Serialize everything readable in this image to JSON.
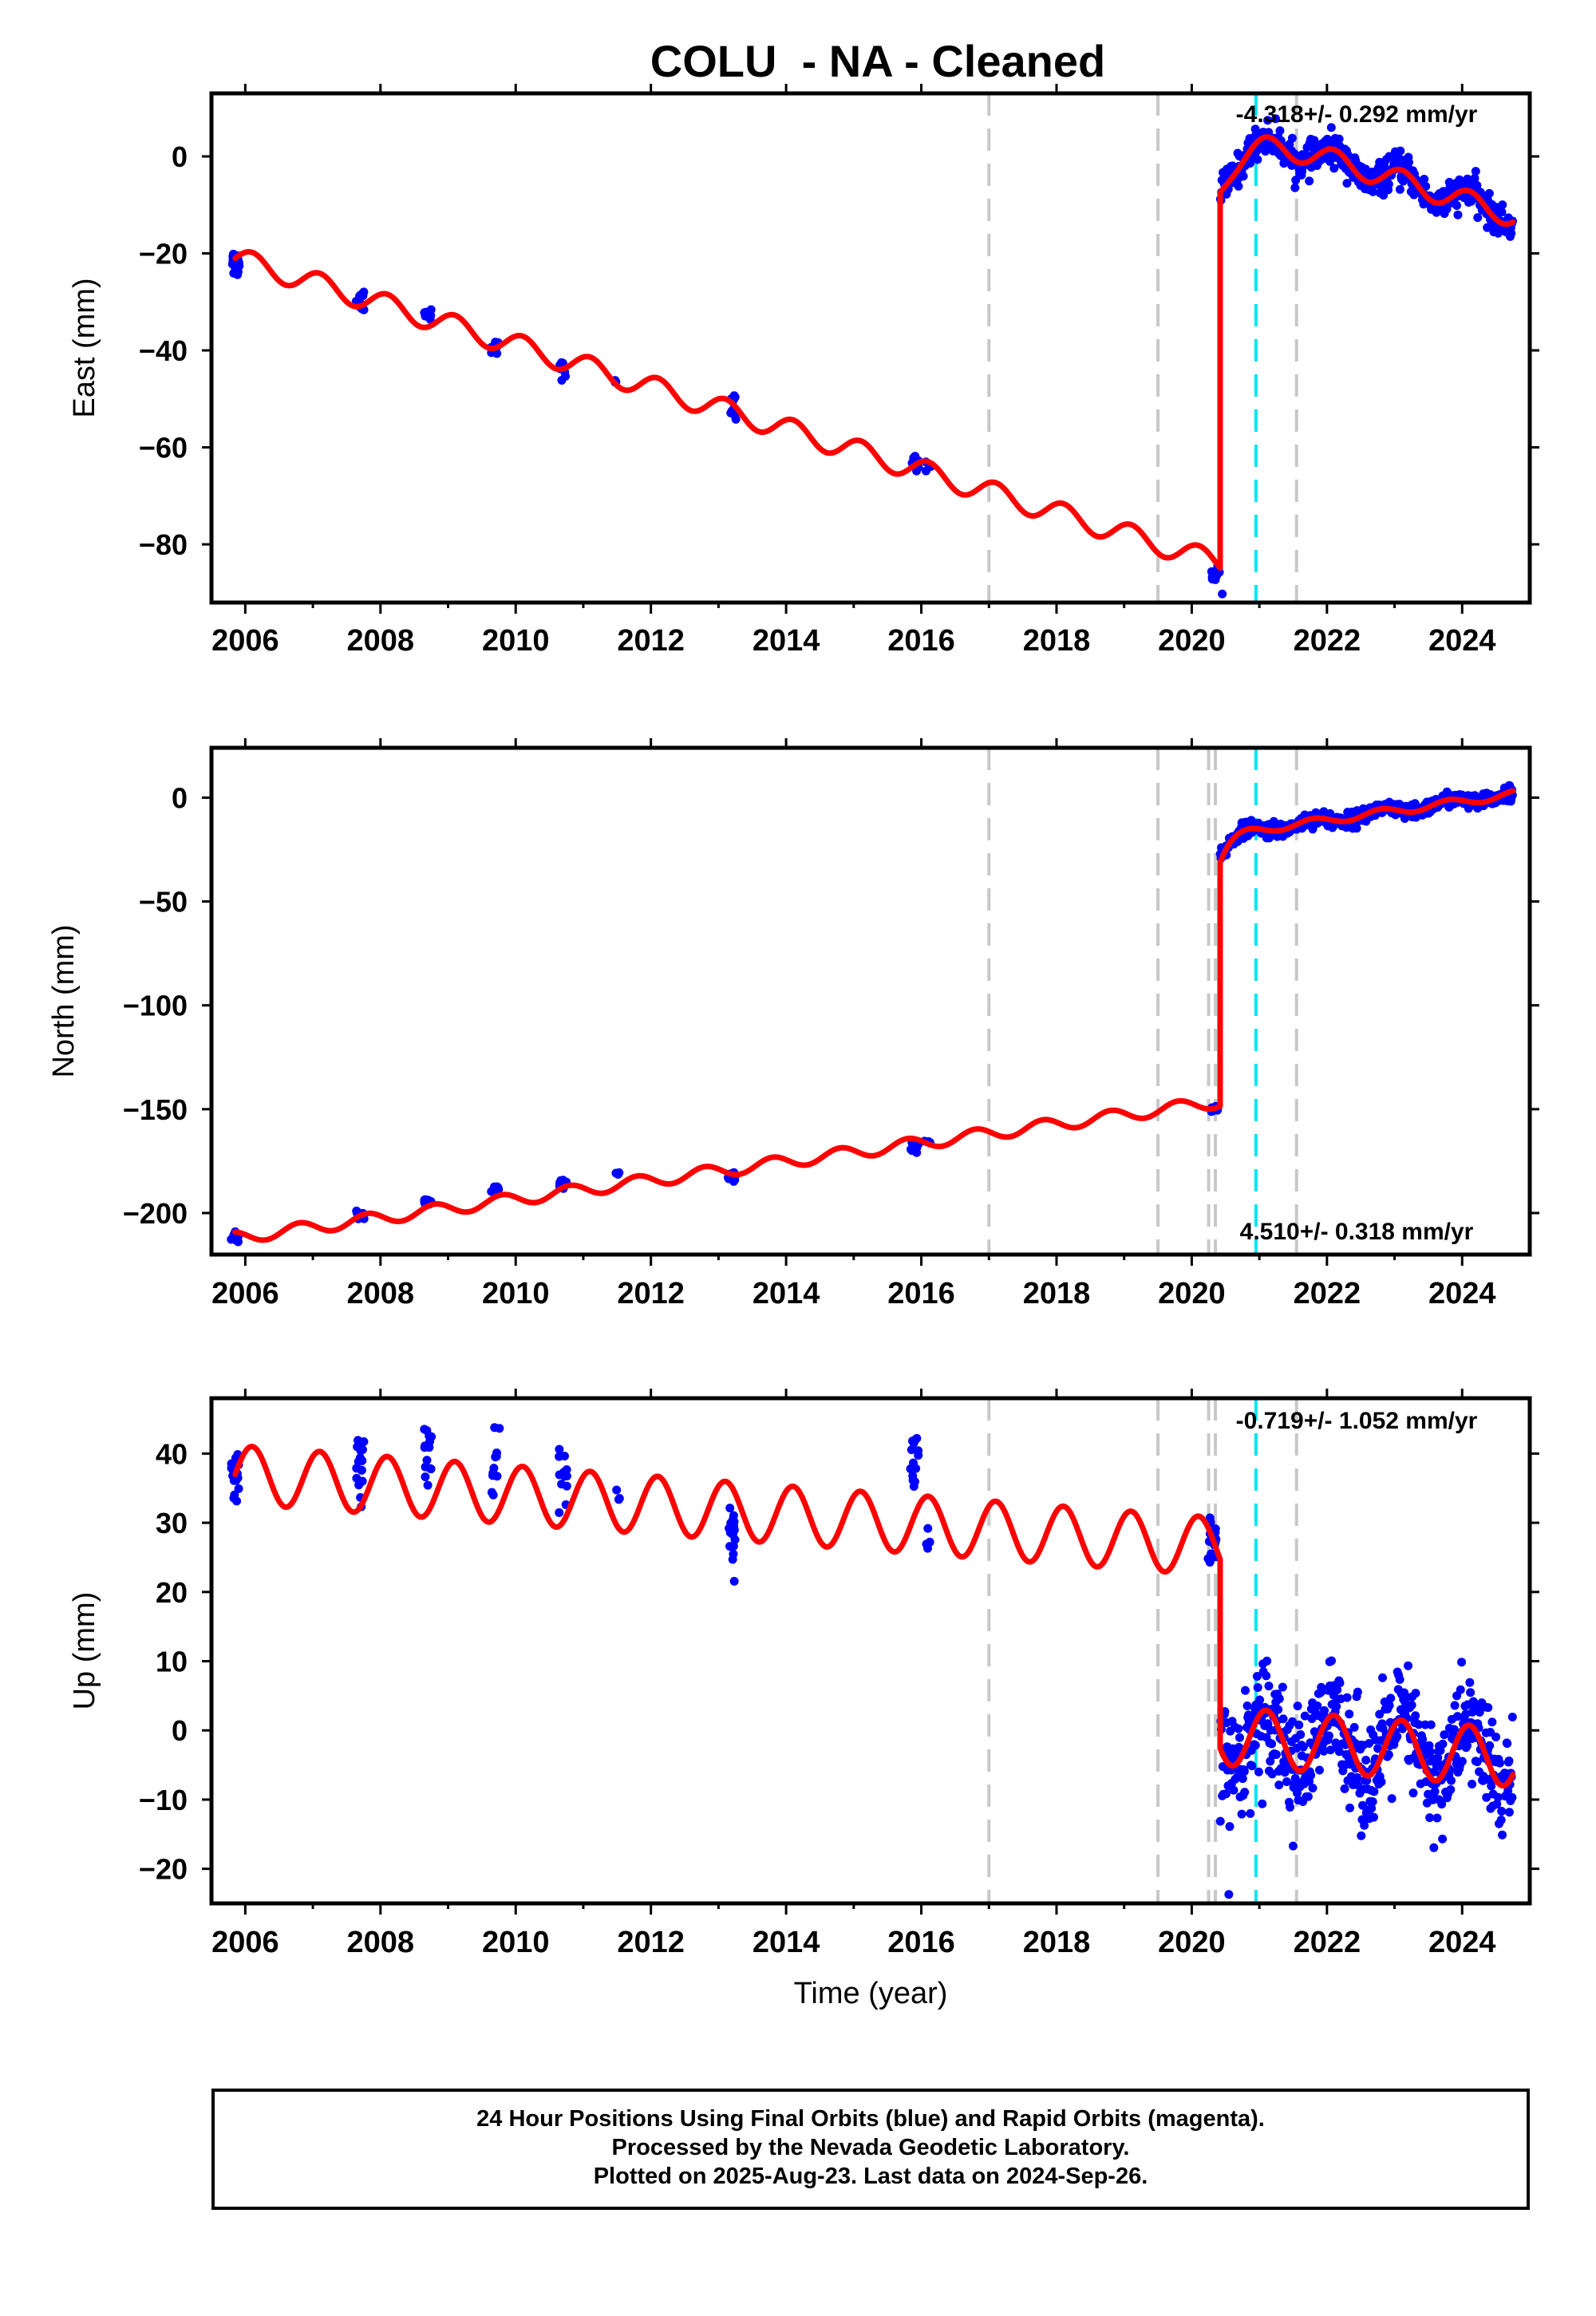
{
  "title": "COLU  - NA - Cleaned",
  "x_axis_label": "Time (year)",
  "footer": {
    "line1": "24 Hour Positions Using Final Orbits (blue) and Rapid Orbits (magenta).",
    "line2": "Processed by the Nevada Geodetic Laboratory.",
    "line3": "Plotted on 2025-Aug-23. Last data on 2024-Sep-26."
  },
  "colors": {
    "observations": "#0000ff",
    "model": "#ff0000",
    "equipment_change": "#c8c8c8",
    "earthquake": "#00e5f0"
  },
  "chart_data": [
    {
      "type": "scatter",
      "component": "East",
      "ylabel": "East (mm)",
      "xlabel": "",
      "xlim": [
        2005.5,
        2025.0
      ],
      "ylim": [
        -92,
        13
      ],
      "xticks": [
        2006,
        2008,
        2010,
        2012,
        2014,
        2016,
        2018,
        2020,
        2022,
        2024
      ],
      "yticks": [
        0,
        -20,
        -40,
        -60,
        -80
      ],
      "ytick_labels": [
        "0",
        "−20",
        "−40",
        "−60",
        "−80"
      ],
      "rate_label": "-4.318+/- 0.292 mm/yr",
      "vlines_gray": [
        2017.0,
        2019.5,
        2021.55
      ],
      "vlines_cyan": [
        2020.95
      ],
      "model": {
        "segments": [
          {
            "t0": 2005.85,
            "t1": 2020.42,
            "y_at_t0": -21.0,
            "rate": -4.318,
            "annual_amp": 2.3,
            "phase": 0.15
          },
          {
            "t0": 2020.42,
            "t1": 2024.75,
            "y_at_t0": -6.5,
            "rate": -4.318,
            "annual_amp": 2.3,
            "phase": 0.15,
            "transient_amp": 13.0,
            "transient_tau": 0.35
          }
        ]
      },
      "observation_clusters": [
        {
          "t": 2005.85,
          "y": -22.0,
          "spread": 2.5,
          "count": 14
        },
        {
          "t": 2007.7,
          "y": -29.5,
          "spread": 2.0,
          "count": 14
        },
        {
          "t": 2008.7,
          "y": -32.5,
          "spread": 1.5,
          "count": 10
        },
        {
          "t": 2009.7,
          "y": -39.0,
          "spread": 1.5,
          "count": 10
        },
        {
          "t": 2010.7,
          "y": -44.0,
          "spread": 1.5,
          "count": 10
        },
        {
          "t": 2011.5,
          "y": -46.5,
          "spread": 0.5,
          "count": 3
        },
        {
          "t": 2013.2,
          "y": -51.5,
          "spread": 2.0,
          "count": 12
        },
        {
          "t": 2015.9,
          "y": -63.5,
          "spread": 1.5,
          "count": 12
        },
        {
          "t": 2016.1,
          "y": -64.0,
          "spread": 1.0,
          "count": 4
        },
        {
          "t": 2020.35,
          "y": -86.0,
          "spread": 2.0,
          "count": 10
        },
        {
          "t": 2020.4,
          "y": -90.0,
          "spread": 0.3,
          "count": 1
        }
      ],
      "continuous_observations": {
        "t0": 2020.42,
        "t1": 2024.75,
        "noise": 1.6,
        "density": 120
      }
    },
    {
      "type": "scatter",
      "component": "North",
      "ylabel": "North (mm)",
      "xlabel": "",
      "xlim": [
        2005.5,
        2025.0
      ],
      "ylim": [
        -220,
        24
      ],
      "xticks": [
        2006,
        2008,
        2010,
        2012,
        2014,
        2016,
        2018,
        2020,
        2022,
        2024
      ],
      "yticks": [
        0,
        -50,
        -100,
        -150,
        -200
      ],
      "ytick_labels": [
        "0",
        "−50",
        "−100",
        "−150",
        "−200"
      ],
      "rate_label": "4.510+/- 0.318 mm/yr",
      "vlines_gray": [
        2017.0,
        2019.5,
        2020.25,
        2020.35,
        2021.55
      ],
      "vlines_cyan": [
        2020.95
      ],
      "model": {
        "segments": [
          {
            "t0": 2005.85,
            "t1": 2020.42,
            "y_at_t0": -212.0,
            "rate": 4.51,
            "annual_amp": 3.0,
            "phase": 0.45
          },
          {
            "t0": 2020.42,
            "t1": 2024.75,
            "y_at_t0": -30.0,
            "rate": 4.51,
            "annual_amp": 1.8,
            "phase": 0.45,
            "transient_amp": 12.0,
            "transient_tau": 0.15
          }
        ]
      },
      "observation_clusters": [
        {
          "t": 2005.85,
          "y": -212.0,
          "spread": 2.0,
          "count": 12
        },
        {
          "t": 2007.7,
          "y": -201.0,
          "spread": 2.0,
          "count": 12
        },
        {
          "t": 2008.7,
          "y": -195.0,
          "spread": 1.5,
          "count": 10
        },
        {
          "t": 2009.7,
          "y": -188.0,
          "spread": 1.5,
          "count": 10
        },
        {
          "t": 2010.7,
          "y": -186.0,
          "spread": 2.0,
          "count": 10
        },
        {
          "t": 2011.5,
          "y": -181.0,
          "spread": 0.5,
          "count": 3
        },
        {
          "t": 2013.2,
          "y": -183.0,
          "spread": 2.5,
          "count": 12
        },
        {
          "t": 2015.9,
          "y": -168.0,
          "spread": 2.0,
          "count": 12
        },
        {
          "t": 2016.1,
          "y": -166.0,
          "spread": 1.0,
          "count": 4
        },
        {
          "t": 2020.35,
          "y": -150.0,
          "spread": 2.0,
          "count": 10
        }
      ],
      "continuous_observations": {
        "t0": 2020.42,
        "t1": 2024.75,
        "noise": 1.8,
        "density": 120
      }
    },
    {
      "type": "scatter",
      "component": "Up",
      "ylabel": "Up (mm)",
      "xlabel": "Time (year)",
      "xlim": [
        2005.5,
        2025.0
      ],
      "ylim": [
        -25,
        48
      ],
      "xticks": [
        2006,
        2008,
        2010,
        2012,
        2014,
        2016,
        2018,
        2020,
        2022,
        2024
      ],
      "yticks": [
        40,
        30,
        20,
        10,
        0,
        -10,
        -20
      ],
      "ytick_labels": [
        "40",
        "30",
        "20",
        "10",
        "0",
        "−10",
        "−20"
      ],
      "rate_label": "-0.719+/- 1.052 mm/yr",
      "vlines_gray": [
        2017.0,
        2019.5,
        2020.25,
        2020.35,
        2021.55
      ],
      "vlines_cyan": [
        2020.95
      ],
      "model": {
        "segments": [
          {
            "t0": 2005.85,
            "t1": 2020.42,
            "y_at_t0": 37.0,
            "rate": -0.719,
            "annual_amp": 4.2,
            "phase": 0.15
          },
          {
            "t0": 2020.42,
            "t1": 2024.75,
            "y_at_t0": -0.8,
            "rate": -0.719,
            "annual_amp": 4.2,
            "phase": 0.15
          }
        ]
      },
      "observation_clusters": [
        {
          "t": 2005.85,
          "y": 36.0,
          "spread": 3.0,
          "count": 18
        },
        {
          "t": 2007.7,
          "y": 38.0,
          "spread": 5.0,
          "count": 18
        },
        {
          "t": 2008.7,
          "y": 40.5,
          "spread": 4.0,
          "count": 14
        },
        {
          "t": 2009.7,
          "y": 38.5,
          "spread": 4.0,
          "count": 12
        },
        {
          "t": 2010.7,
          "y": 37.0,
          "spread": 4.0,
          "count": 14
        },
        {
          "t": 2011.5,
          "y": 33.0,
          "spread": 2.5,
          "count": 3
        },
        {
          "t": 2013.2,
          "y": 28.0,
          "spread": 4.5,
          "count": 16
        },
        {
          "t": 2015.9,
          "y": 38.0,
          "spread": 4.5,
          "count": 14
        },
        {
          "t": 2016.1,
          "y": 26.5,
          "spread": 2.0,
          "count": 4
        },
        {
          "t": 2020.3,
          "y": 26.5,
          "spread": 3.5,
          "count": 18
        },
        {
          "t": 2020.5,
          "y": -23.5,
          "spread": 0.3,
          "count": 1
        }
      ],
      "continuous_observations": {
        "t0": 2020.42,
        "t1": 2024.75,
        "noise": 4.0,
        "density": 130
      }
    }
  ]
}
